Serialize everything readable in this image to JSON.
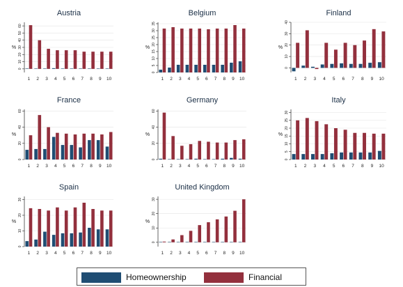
{
  "colors": {
    "homeownership": "#1f4d73",
    "financial": "#93303d",
    "grid": "#e3e3e3",
    "axis": "#222222"
  },
  "legend": {
    "homeownership": "Homeownership",
    "financial": "Financial"
  },
  "chart_data": [
    {
      "type": "bar",
      "title": "Austria",
      "ylabel": "%",
      "ylim": [
        -5,
        65
      ],
      "yticks": [
        0,
        10,
        20,
        30,
        40,
        50,
        60
      ],
      "categories": [
        "1",
        "2",
        "3",
        "4",
        "5",
        "6",
        "7",
        "8",
        "9",
        "10"
      ],
      "series": [
        {
          "name": "Homeownership",
          "values": [
            0.5,
            0.5,
            0.5,
            1,
            0.5,
            0.5,
            0.5,
            0.5,
            0.5,
            0.5
          ]
        },
        {
          "name": "Financial",
          "values": [
            61,
            40,
            28,
            26,
            26,
            26,
            24,
            24,
            24,
            24
          ]
        }
      ]
    },
    {
      "type": "bar",
      "title": "Belgium",
      "ylabel": "%",
      "ylim": [
        0,
        36
      ],
      "yticks": [
        0,
        5,
        10,
        15,
        20,
        25,
        30,
        35
      ],
      "categories": [
        "1",
        "2",
        "3",
        "4",
        "5",
        "6",
        "7",
        "8",
        "9",
        "10"
      ],
      "series": [
        {
          "name": "Homeownership",
          "values": [
            2,
            3.5,
            5.5,
            5.5,
            5.5,
            5.5,
            5.5,
            5.5,
            7,
            8
          ]
        },
        {
          "name": "Financial",
          "values": [
            31.5,
            32.5,
            31.5,
            31.5,
            31.5,
            31,
            31.5,
            31.5,
            34,
            31.5
          ]
        }
      ]
    },
    {
      "type": "bar",
      "title": "Finland",
      "ylabel": "%",
      "ylim": [
        -4,
        40
      ],
      "yticks": [
        0,
        10,
        20,
        30,
        40
      ],
      "categories": [
        "1",
        "2",
        "3",
        "4",
        "5",
        "6",
        "7",
        "8",
        "9",
        "10"
      ],
      "series": [
        {
          "name": "Homeownership",
          "values": [
            -3,
            2,
            1,
            3,
            3.5,
            4,
            3.5,
            3.5,
            4.5,
            5
          ]
        },
        {
          "name": "Financial",
          "values": [
            22,
            33,
            -1,
            22,
            16,
            22,
            20,
            24,
            34,
            32
          ]
        }
      ]
    },
    {
      "type": "bar",
      "title": "France",
      "ylabel": "%",
      "ylim": [
        0,
        62
      ],
      "yticks": [
        0,
        20,
        40,
        60
      ],
      "categories": [
        "1",
        "2",
        "3",
        "4",
        "5",
        "6",
        "7",
        "8",
        "9",
        "10"
      ],
      "series": [
        {
          "name": "Homeownership",
          "values": [
            12,
            13,
            13,
            28,
            18,
            18,
            15,
            24,
            24,
            16
          ]
        },
        {
          "name": "Financial",
          "values": [
            30,
            55,
            40,
            33,
            32,
            31,
            32,
            32,
            31,
            34
          ]
        }
      ]
    },
    {
      "type": "bar",
      "title": "Germany",
      "ylabel": "%",
      "ylim": [
        0,
        62
      ],
      "yticks": [
        0,
        20,
        40,
        60
      ],
      "categories": [
        "1",
        "2",
        "3",
        "4",
        "5",
        "6",
        "7",
        "8",
        "9",
        "10"
      ],
      "series": [
        {
          "name": "Homeownership",
          "values": [
            1,
            0.5,
            0.5,
            0.5,
            1,
            0.5,
            0.5,
            1,
            2,
            1
          ]
        },
        {
          "name": "Financial",
          "values": [
            58,
            29,
            17,
            19,
            23,
            22,
            21,
            21,
            24,
            25
          ]
        }
      ]
    },
    {
      "type": "bar",
      "title": "Italy",
      "ylabel": "%",
      "ylim": [
        0,
        32
      ],
      "yticks": [
        0,
        5,
        10,
        15,
        20,
        25,
        30
      ],
      "categories": [
        "1",
        "2",
        "3",
        "4",
        "5",
        "6",
        "7",
        "8",
        "9",
        "10"
      ],
      "series": [
        {
          "name": "Homeownership",
          "values": [
            3.5,
            3.5,
            3.5,
            3.5,
            4,
            4.5,
            4.5,
            4.5,
            4.5,
            5.5
          ]
        },
        {
          "name": "Financial",
          "values": [
            25,
            26.5,
            24.5,
            22.5,
            20,
            19,
            17,
            17,
            16.5,
            16.5
          ]
        }
      ]
    },
    {
      "type": "bar",
      "title": "Spain",
      "ylabel": "%",
      "ylim": [
        0,
        32
      ],
      "yticks": [
        0,
        10,
        20,
        30
      ],
      "categories": [
        "1",
        "2",
        "3",
        "4",
        "5",
        "6",
        "7",
        "8",
        "9",
        "10"
      ],
      "series": [
        {
          "name": "Homeownership",
          "values": [
            3.5,
            4.5,
            9.5,
            7.5,
            8.5,
            8.5,
            9,
            12,
            11,
            11
          ]
        },
        {
          "name": "Financial",
          "values": [
            24.5,
            24,
            23,
            25,
            23,
            25,
            28,
            24,
            23,
            23
          ]
        }
      ]
    },
    {
      "type": "bar",
      "title": "United Kingdom",
      "ylabel": "%",
      "ylim": [
        -3,
        32
      ],
      "yticks": [
        0,
        10,
        20,
        30
      ],
      "categories": [
        "1",
        "2",
        "3",
        "4",
        "5",
        "6",
        "7",
        "8",
        "9",
        "10"
      ],
      "series": [
        {
          "name": "Homeownership",
          "values": [
            0.3,
            0.3,
            0.3,
            0.3,
            0.3,
            0.3,
            0.3,
            0.3,
            0.3,
            0.3
          ]
        },
        {
          "name": "Financial",
          "values": [
            0.5,
            2,
            5,
            8,
            12,
            14,
            16,
            18,
            22,
            30
          ]
        }
      ]
    }
  ]
}
